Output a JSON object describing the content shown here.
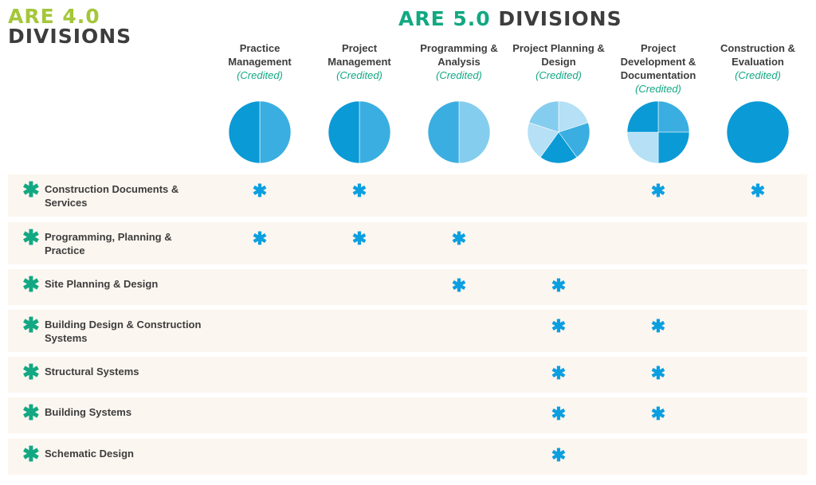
{
  "are4": {
    "title_line1": "ARE 4.0",
    "title_line2": "DIVISIONS"
  },
  "are5": {
    "title_accent": "ARE 5.0",
    "title_rest": "DIVISIONS",
    "columns": [
      {
        "label": "Practice Management",
        "status": "(Credited)",
        "pie": [
          {
            "value": 0.5,
            "color": "#3aaee0"
          },
          {
            "value": 0.5,
            "color": "#0a9ad6"
          }
        ]
      },
      {
        "label": "Project Management",
        "status": "(Credited)",
        "pie": [
          {
            "value": 0.5,
            "color": "#3aaee0"
          },
          {
            "value": 0.5,
            "color": "#0a9ad6"
          }
        ]
      },
      {
        "label": "Programming & Analysis",
        "status": "(Credited)",
        "pie": [
          {
            "value": 0.5,
            "color": "#85cdee"
          },
          {
            "value": 0.5,
            "color": "#3aaee0"
          }
        ]
      },
      {
        "label": "Project Planning & Design",
        "status": "(Credited)",
        "pie": [
          {
            "value": 0.2,
            "color": "#b5e0f5"
          },
          {
            "value": 0.2,
            "color": "#3aaee0"
          },
          {
            "value": 0.2,
            "color": "#0a9ad6"
          },
          {
            "value": 0.2,
            "color": "#b5e0f5"
          },
          {
            "value": 0.2,
            "color": "#85cdee"
          }
        ]
      },
      {
        "label": "Project Development & Documentation",
        "status": "(Credited)",
        "pie": [
          {
            "value": 0.25,
            "color": "#3aaee0"
          },
          {
            "value": 0.25,
            "color": "#0a9ad6"
          },
          {
            "value": 0.25,
            "color": "#b5e0f5"
          },
          {
            "value": 0.25,
            "color": "#0a9ad6"
          }
        ]
      },
      {
        "label": "Construction & Evaluation",
        "status": "(Credited)",
        "pie": [
          {
            "value": 1,
            "color": "#0a9ad6"
          }
        ]
      }
    ]
  },
  "rows": [
    {
      "label": "Construction Documents & Services",
      "marks": [
        0,
        1,
        4,
        5
      ]
    },
    {
      "label": "Programming, Planning & Practice",
      "marks": [
        0,
        1,
        2
      ]
    },
    {
      "label": "Site Planning & Design",
      "marks": [
        2,
        3
      ]
    },
    {
      "label": "Building Design & Construction Systems",
      "marks": [
        3,
        4
      ]
    },
    {
      "label": "Structural Systems",
      "marks": [
        3,
        4
      ]
    },
    {
      "label": "Building Systems",
      "marks": [
        3,
        4
      ]
    },
    {
      "label": "Schematic Design",
      "marks": [
        3
      ]
    }
  ],
  "glyphs": {
    "row_icon": "asterisk-icon",
    "mark_icon": "asterisk-icon",
    "asterisk": "✱"
  },
  "colors": {
    "are4_accent": "#a4c639",
    "are5_accent": "#12a882",
    "mark": "#0b9fe0",
    "row_bg": "#fcf6f0"
  }
}
